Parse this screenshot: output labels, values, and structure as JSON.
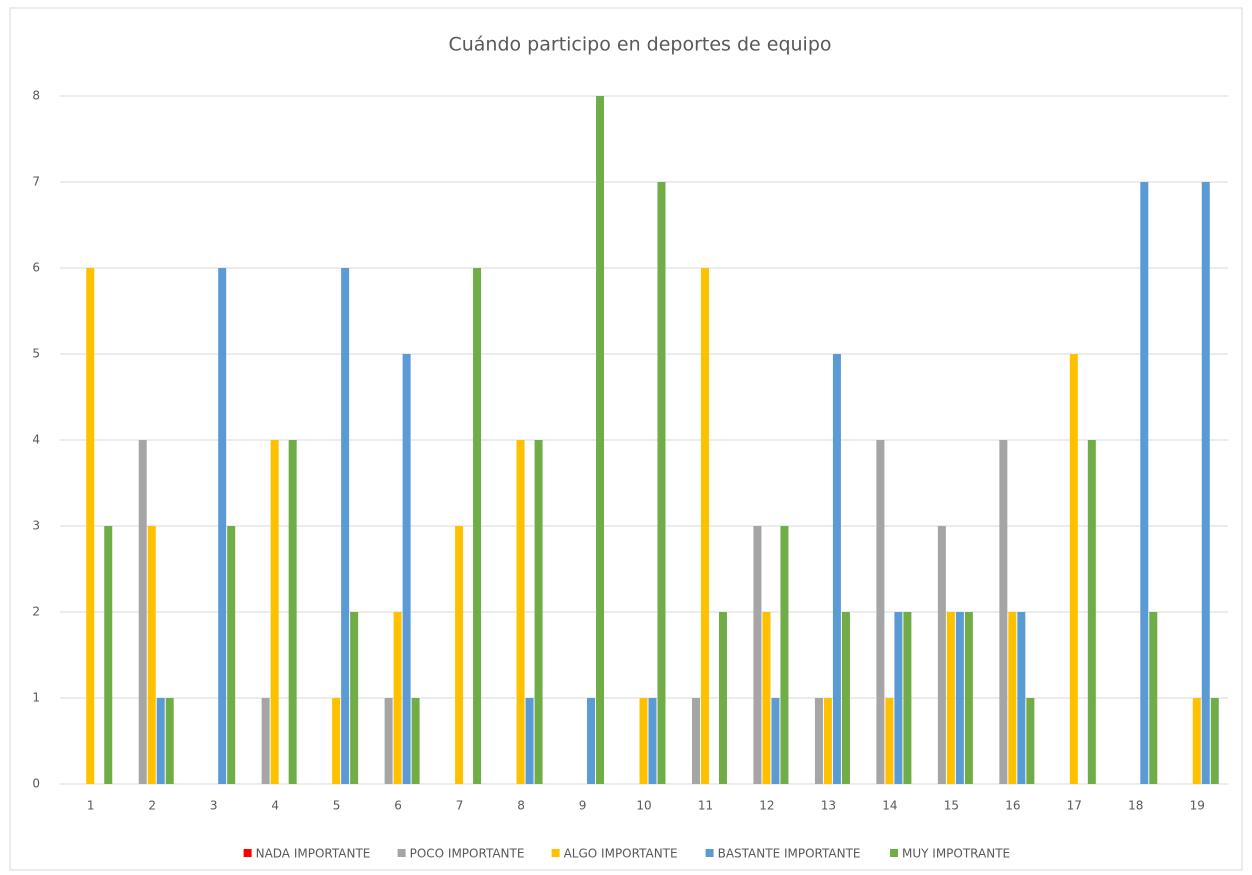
{
  "chart_data": {
    "type": "bar",
    "title": "Cuándo participo en deportes de equipo",
    "categories": [
      "1",
      "2",
      "3",
      "4",
      "5",
      "6",
      "7",
      "8",
      "9",
      "10",
      "11",
      "12",
      "13",
      "14",
      "15",
      "16",
      "17",
      "18",
      "19"
    ],
    "series": [
      {
        "name": "NADA IMPORTANTE",
        "color": "#ff0000",
        "values": [
          0,
          0,
          0,
          0,
          0,
          0,
          0,
          0,
          0,
          0,
          0,
          0,
          0,
          0,
          0,
          0,
          0,
          0,
          0
        ]
      },
      {
        "name": "POCO IMPORTANTE",
        "color": "#a5a5a5",
        "values": [
          0,
          4,
          0,
          1,
          0,
          1,
          0,
          0,
          0,
          0,
          1,
          3,
          1,
          4,
          3,
          4,
          0,
          0,
          0
        ]
      },
      {
        "name": "ALGO IMPORTANTE",
        "color": "#ffc000",
        "values": [
          6,
          3,
          0,
          4,
          1,
          2,
          3,
          4,
          0,
          1,
          6,
          2,
          1,
          1,
          2,
          2,
          5,
          0,
          1
        ]
      },
      {
        "name": "BASTANTE IMPORTANTE",
        "color": "#5b9bd5",
        "values": [
          0,
          1,
          6,
          0,
          6,
          5,
          0,
          1,
          1,
          1,
          0,
          1,
          5,
          2,
          2,
          2,
          0,
          7,
          7
        ]
      },
      {
        "name": "MUY IMPOTRANTE",
        "color": "#70ad47",
        "values": [
          3,
          1,
          3,
          4,
          2,
          1,
          6,
          4,
          8,
          7,
          2,
          3,
          2,
          2,
          2,
          1,
          4,
          2,
          1
        ]
      }
    ],
    "ylim": [
      0,
      8
    ],
    "yticks": [
      0,
      1,
      2,
      3,
      4,
      5,
      6,
      7,
      8
    ],
    "grid": true,
    "legend": "bottom"
  }
}
